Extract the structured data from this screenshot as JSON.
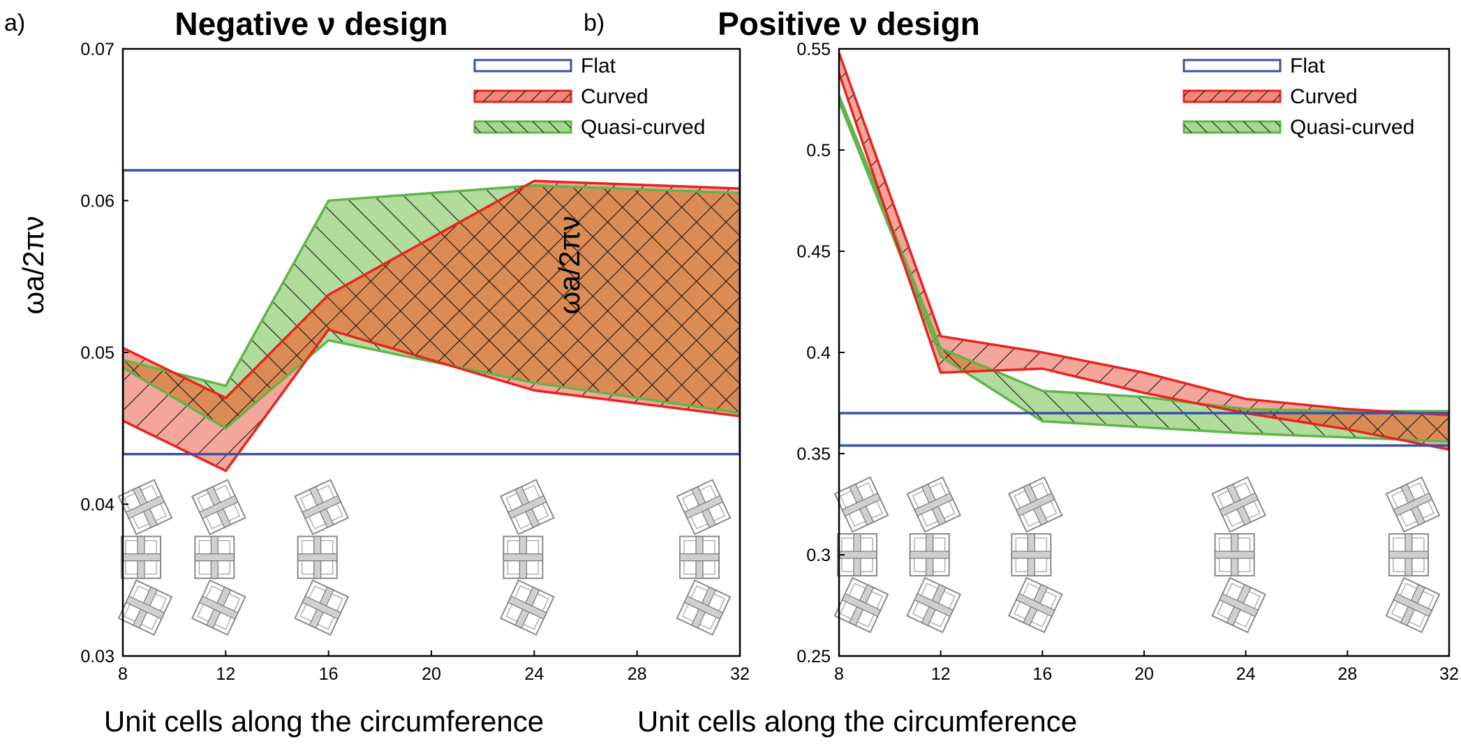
{
  "colors": {
    "flat": "#3a4fa8",
    "curved": "#e8231f",
    "curved_fill": "#f08878",
    "quasi": "#5fb54a",
    "quasi_fill": "#a8d890",
    "overlap_fill": "#d98a4e"
  },
  "icons": [
    "unit-cell-chain-icon"
  ],
  "chart_data": [
    {
      "panel": "a)",
      "type": "area",
      "title": "Negative ν design",
      "xlabel": "Unit cells along the circumference",
      "ylabel": "ωa/2πν",
      "xlim": [
        8,
        32
      ],
      "ylim": [
        0.03,
        0.07
      ],
      "xticks": [
        8,
        12,
        16,
        20,
        24,
        28,
        32
      ],
      "yticks": [
        0.03,
        0.04,
        0.05,
        0.06,
        0.07
      ],
      "xtick_labels": [
        "8",
        "12",
        "16",
        "20",
        "24",
        "28",
        "32"
      ],
      "ytick_labels": [
        "0.03",
        "0.04",
        "0.05",
        "0.06",
        "0.07"
      ],
      "legend": {
        "position": "top-right",
        "entries": [
          "Flat",
          "Curved",
          "Quasi-curved"
        ]
      },
      "series": [
        {
          "name": "Flat",
          "x": [
            8,
            32
          ],
          "lower": [
            0.0433,
            0.0433
          ],
          "upper": [
            0.062,
            0.062
          ]
        },
        {
          "name": "Curved",
          "x": [
            8,
            12,
            16,
            24,
            32
          ],
          "lower": [
            0.0455,
            0.0422,
            0.0515,
            0.0475,
            0.0458
          ],
          "upper": [
            0.0503,
            0.047,
            0.0538,
            0.0613,
            0.0608
          ]
        },
        {
          "name": "Quasi-curved",
          "x": [
            8,
            12,
            16,
            24,
            32
          ],
          "lower": [
            0.049,
            0.045,
            0.0508,
            0.048,
            0.046
          ],
          "upper": [
            0.0495,
            0.0478,
            0.06,
            0.061,
            0.0605
          ]
        }
      ],
      "unit_cell_images_at_x": [
        8,
        12,
        16,
        24,
        32
      ]
    },
    {
      "panel": "b)",
      "type": "area",
      "title": "Positive ν design",
      "xlabel": "Unit cells along the circumference",
      "ylabel": "ωa/2πν",
      "xlim": [
        8,
        32
      ],
      "ylim": [
        0.25,
        0.55
      ],
      "xticks": [
        8,
        12,
        16,
        20,
        24,
        28,
        32
      ],
      "yticks": [
        0.25,
        0.3,
        0.35,
        0.4,
        0.45,
        0.5,
        0.55
      ],
      "xtick_labels": [
        "8",
        "12",
        "16",
        "20",
        "24",
        "28",
        "32"
      ],
      "ytick_labels": [
        "0.25",
        "0.3",
        "0.35",
        "0.4",
        "0.45",
        "0.5",
        "0.55"
      ],
      "legend": {
        "position": "top-right",
        "entries": [
          "Flat",
          "Curved",
          "Quasi-curved"
        ]
      },
      "series": [
        {
          "name": "Flat",
          "x": [
            8,
            32
          ],
          "lower": [
            0.354,
            0.354
          ],
          "upper": [
            0.37,
            0.37
          ]
        },
        {
          "name": "Curved",
          "x": [
            8,
            12,
            16,
            20,
            24,
            28,
            32
          ],
          "lower": [
            0.538,
            0.39,
            0.392,
            0.38,
            0.37,
            0.362,
            0.352
          ],
          "upper": [
            0.548,
            0.408,
            0.4,
            0.39,
            0.377,
            0.372,
            0.369
          ]
        },
        {
          "name": "Quasi-curved",
          "x": [
            8,
            12,
            16,
            20,
            24,
            28,
            32
          ],
          "lower": [
            0.524,
            0.398,
            0.366,
            0.363,
            0.36,
            0.358,
            0.356
          ],
          "upper": [
            0.527,
            0.402,
            0.381,
            0.378,
            0.372,
            0.371,
            0.371
          ]
        }
      ],
      "unit_cell_images_at_x": [
        8,
        12,
        16,
        24,
        32
      ]
    }
  ]
}
